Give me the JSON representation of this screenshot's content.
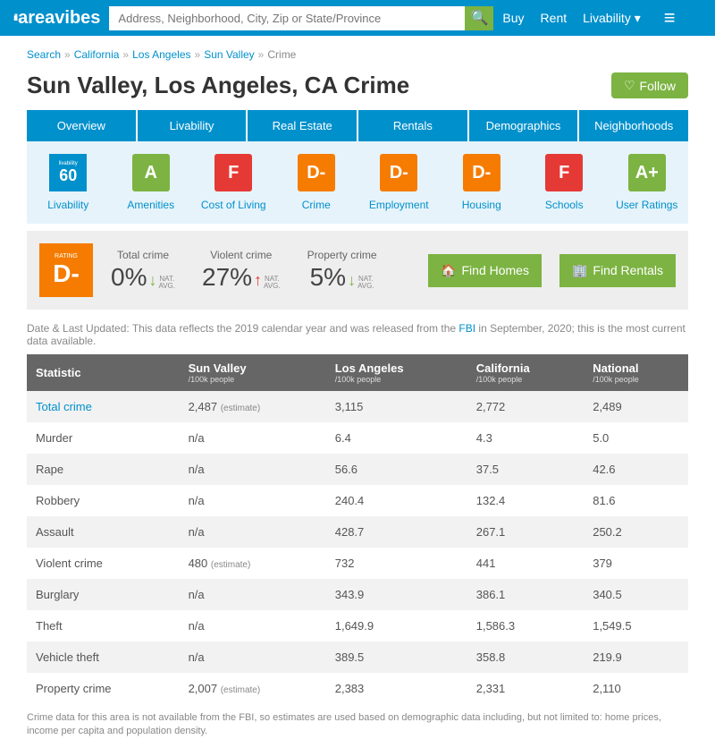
{
  "header": {
    "logo": "areavibes",
    "search_placeholder": "Address, Neighborhood, City, Zip or State/Province",
    "buy": "Buy",
    "rent": "Rent",
    "livability": "Livability ▾"
  },
  "breadcrumb": {
    "items": [
      "Search",
      "California",
      "Los Angeles",
      "Sun Valley"
    ],
    "current": "Crime"
  },
  "page_title": "Sun Valley, Los Angeles, CA Crime",
  "follow_label": "Follow",
  "tabs": [
    "Overview",
    "Livability",
    "Real Estate",
    "Rentals",
    "Demographics",
    "Neighborhoods"
  ],
  "scores": [
    {
      "label": "Livability",
      "badge": "60",
      "type": "livability"
    },
    {
      "label": "Amenities",
      "badge": "A",
      "color": "green"
    },
    {
      "label": "Cost of Living",
      "badge": "F",
      "color": "red"
    },
    {
      "label": "Crime",
      "badge": "D-",
      "color": "orange"
    },
    {
      "label": "Employment",
      "badge": "D-",
      "color": "orange"
    },
    {
      "label": "Housing",
      "badge": "D-",
      "color": "orange"
    },
    {
      "label": "Schools",
      "badge": "F",
      "color": "red"
    },
    {
      "label": "User Ratings",
      "badge": "A+",
      "color": "green"
    }
  ],
  "summary": {
    "grade": "D-",
    "rating_label": "RATING",
    "stats": [
      {
        "label": "Total crime",
        "value": "0%",
        "dir": "down"
      },
      {
        "label": "Violent crime",
        "value": "27%",
        "dir": "up"
      },
      {
        "label": "Property crime",
        "value": "5%",
        "dir": "down"
      }
    ],
    "nat_avg": "NAT.\nAVG.",
    "find_homes": "Find Homes",
    "find_rentals": "Find Rentals"
  },
  "date_note_pre": "Date & Last Updated: This data reflects the 2019 calendar year and was released from the ",
  "date_note_link": "FBI",
  "date_note_post": " in September, 2020; this is the most current data available.",
  "table": {
    "headers": [
      {
        "title": "Statistic",
        "sub": ""
      },
      {
        "title": "Sun Valley",
        "sub": "/100k people"
      },
      {
        "title": "Los Angeles",
        "sub": "/100k people"
      },
      {
        "title": "California",
        "sub": "/100k people"
      },
      {
        "title": "National",
        "sub": "/100k people"
      }
    ],
    "rows": [
      {
        "stat": "Total crime",
        "link": true,
        "sv": "2,487",
        "est": true,
        "la": "3,115",
        "ca": "2,772",
        "nat": "2,489"
      },
      {
        "stat": "Murder",
        "sv": "n/a",
        "la": "6.4",
        "ca": "4.3",
        "nat": "5.0"
      },
      {
        "stat": "Rape",
        "sv": "n/a",
        "la": "56.6",
        "ca": "37.5",
        "nat": "42.6"
      },
      {
        "stat": "Robbery",
        "sv": "n/a",
        "la": "240.4",
        "ca": "132.4",
        "nat": "81.6"
      },
      {
        "stat": "Assault",
        "sv": "n/a",
        "la": "428.7",
        "ca": "267.1",
        "nat": "250.2"
      },
      {
        "stat": "Violent crime",
        "sv": "480",
        "est": true,
        "la": "732",
        "ca": "441",
        "nat": "379"
      },
      {
        "stat": "Burglary",
        "sv": "n/a",
        "la": "343.9",
        "ca": "386.1",
        "nat": "340.5"
      },
      {
        "stat": "Theft",
        "sv": "n/a",
        "la": "1,649.9",
        "ca": "1,586.3",
        "nat": "1,549.5"
      },
      {
        "stat": "Vehicle theft",
        "sv": "n/a",
        "la": "389.5",
        "ca": "358.8",
        "nat": "219.9"
      },
      {
        "stat": "Property crime",
        "sv": "2,007",
        "est": true,
        "la": "2,383",
        "ca": "2,331",
        "nat": "2,110"
      }
    ]
  },
  "estimate_label": "(estimate)",
  "footer_note": "Crime data for this area is not available from the FBI, so estimates are used based on demographic data including, but not limited to: home prices, income per capita and population density."
}
